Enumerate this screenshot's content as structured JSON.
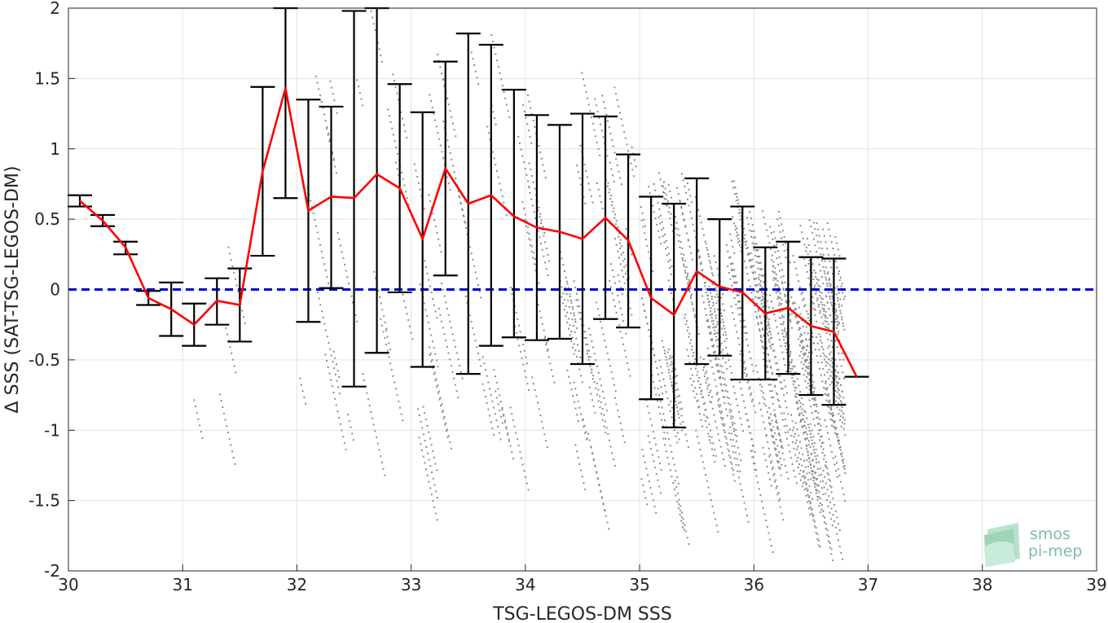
{
  "chart_data": {
    "type": "line",
    "xlabel": "TSG-LEGOS-DM SSS",
    "ylabel": "Δ SSS (SAT-TSG-LEGOS-DM)",
    "xlim": [
      30,
      39
    ],
    "ylim": [
      -2,
      2
    ],
    "x_ticks": [
      "30",
      "31",
      "32",
      "33",
      "34",
      "35",
      "36",
      "37",
      "38",
      "39"
    ],
    "y_ticks": [
      "2",
      "1.5",
      "1",
      "0.5",
      "0",
      "-0.5",
      "-1",
      "-1.5",
      "-2"
    ],
    "grid": true,
    "reference_line": {
      "y": 0,
      "color": "#0000cc",
      "style": "dashed"
    },
    "mean_series": {
      "color": "#ff0000",
      "x": [
        30.1,
        30.3,
        30.5,
        30.7,
        30.9,
        31.1,
        31.3,
        31.5,
        31.7,
        31.9,
        32.1,
        32.3,
        32.5,
        32.7,
        32.9,
        33.1,
        33.3,
        33.5,
        33.7,
        33.9,
        34.1,
        34.3,
        34.5,
        34.7,
        34.9,
        35.1,
        35.3,
        35.5,
        35.7,
        35.9,
        36.1,
        36.3,
        36.5,
        36.7,
        36.9
      ],
      "mean": [
        0.63,
        0.49,
        0.3,
        -0.06,
        -0.14,
        -0.25,
        -0.08,
        -0.11,
        0.84,
        1.43,
        0.56,
        0.66,
        0.65,
        0.82,
        0.72,
        0.36,
        0.86,
        0.61,
        0.67,
        0.52,
        0.44,
        0.41,
        0.36,
        0.51,
        0.35,
        -0.06,
        -0.18,
        0.13,
        0.02,
        -0.02,
        -0.17,
        -0.13,
        -0.26,
        -0.3,
        -0.62
      ]
    },
    "error_bars": {
      "color": "#000000",
      "x": [
        30.1,
        30.3,
        30.5,
        30.7,
        30.9,
        31.1,
        31.3,
        31.5,
        31.7,
        31.9,
        32.1,
        32.3,
        32.5,
        32.7,
        32.9,
        33.1,
        33.3,
        33.5,
        33.7,
        33.9,
        34.1,
        34.3,
        34.5,
        34.7,
        34.9,
        35.1,
        35.3,
        35.5,
        35.7,
        35.9,
        36.1,
        36.3,
        36.5,
        36.7
      ],
      "lower": [
        0.59,
        0.45,
        0.25,
        -0.11,
        -0.33,
        -0.4,
        -0.25,
        -0.37,
        0.24,
        0.65,
        -0.23,
        0.01,
        -0.69,
        -0.45,
        -0.02,
        -0.55,
        0.1,
        -0.6,
        -0.4,
        -0.34,
        -0.36,
        -0.35,
        -0.53,
        -0.21,
        -0.27,
        -0.78,
        -0.98,
        -0.53,
        -0.47,
        -0.64,
        -0.64,
        -0.6,
        -0.75,
        -0.82
      ],
      "upper": [
        0.67,
        0.53,
        0.34,
        -0.01,
        0.05,
        -0.1,
        0.08,
        0.15,
        1.44,
        2.0,
        1.35,
        1.3,
        1.98,
        2.0,
        1.46,
        1.26,
        1.62,
        1.82,
        1.74,
        1.42,
        1.24,
        1.17,
        1.25,
        1.23,
        0.96,
        0.66,
        0.61,
        0.79,
        0.5,
        0.59,
        0.3,
        0.34,
        0.23,
        0.22
      ]
    },
    "scatter": {
      "color": "#8c8c8c",
      "description_only": true
    }
  },
  "logo": {
    "line1": "smos",
    "line2": "pi-mep",
    "color": "#7fbf9f"
  }
}
